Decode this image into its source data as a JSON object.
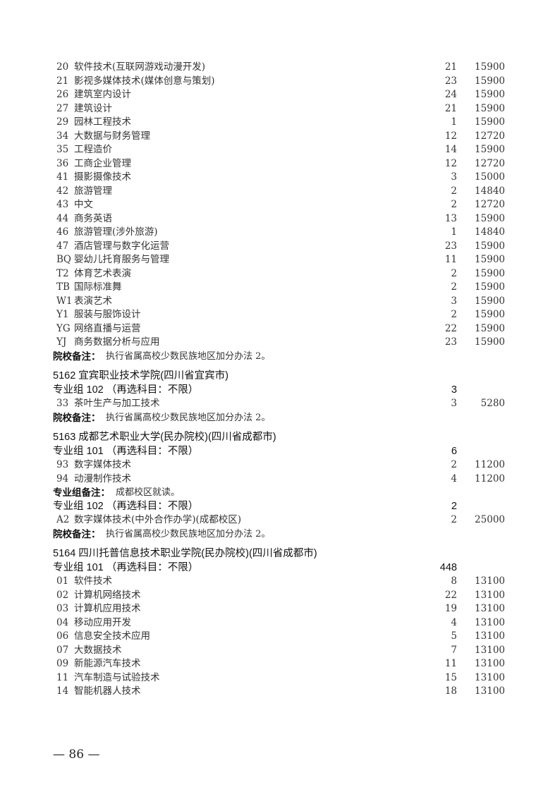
{
  "lines": [
    {
      "type": "item",
      "code": "20",
      "name": "软件技术(互联网游戏动漫开发)",
      "count": "21",
      "fee": "15900"
    },
    {
      "type": "item",
      "code": "21",
      "name": "影视多媒体技术(媒体创意与策划)",
      "count": "23",
      "fee": "15900"
    },
    {
      "type": "item",
      "code": "26",
      "name": "建筑室内设计",
      "count": "24",
      "fee": "15900"
    },
    {
      "type": "item",
      "code": "27",
      "name": "建筑设计",
      "count": "21",
      "fee": "15900"
    },
    {
      "type": "item",
      "code": "29",
      "name": "园林工程技术",
      "count": "1",
      "fee": "15900"
    },
    {
      "type": "item",
      "code": "34",
      "name": "大数据与财务管理",
      "count": "12",
      "fee": "12720"
    },
    {
      "type": "item",
      "code": "35",
      "name": "工程造价",
      "count": "14",
      "fee": "15900"
    },
    {
      "type": "item",
      "code": "36",
      "name": "工商企业管理",
      "count": "12",
      "fee": "12720"
    },
    {
      "type": "item",
      "code": "41",
      "name": "摄影摄像技术",
      "count": "3",
      "fee": "15000"
    },
    {
      "type": "item",
      "code": "42",
      "name": "旅游管理",
      "count": "2",
      "fee": "14840"
    },
    {
      "type": "item",
      "code": "43",
      "name": "中文",
      "count": "2",
      "fee": "12720"
    },
    {
      "type": "item",
      "code": "44",
      "name": "商务英语",
      "count": "13",
      "fee": "15900"
    },
    {
      "type": "item",
      "code": "46",
      "name": "旅游管理(涉外旅游)",
      "count": "1",
      "fee": "14840"
    },
    {
      "type": "item",
      "code": "47",
      "name": "酒店管理与数字化运营",
      "count": "23",
      "fee": "15900"
    },
    {
      "type": "item",
      "code": "BQ",
      "name": "婴幼儿托育服务与管理",
      "count": "11",
      "fee": "15900"
    },
    {
      "type": "item",
      "code": "T2",
      "name": "体育艺术表演",
      "count": "2",
      "fee": "15900"
    },
    {
      "type": "item",
      "code": "TB",
      "name": "国际标准舞",
      "count": "2",
      "fee": "15900"
    },
    {
      "type": "item",
      "code": "W1",
      "name": "表演艺术",
      "count": "3",
      "fee": "15900"
    },
    {
      "type": "item",
      "code": "Y1",
      "name": "服装与服饰设计",
      "count": "2",
      "fee": "15900"
    },
    {
      "type": "item",
      "code": "YG",
      "name": "网络直播与运营",
      "count": "22",
      "fee": "15900"
    },
    {
      "type": "item",
      "code": "YJ",
      "name": "商务数据分析与应用",
      "count": "23",
      "fee": "15900"
    },
    {
      "type": "note",
      "label": "院校备注：",
      "text": "执行省属高校少数民族地区加分办法 2。"
    },
    {
      "type": "school",
      "text": "5162  宜宾职业技术学院(四川省宜宾市)"
    },
    {
      "type": "group",
      "text": "专业组 102 （再选科目：不限）",
      "count": "3"
    },
    {
      "type": "item",
      "code": "33",
      "name": "茶叶生产与加工技术",
      "count": "3",
      "fee": "5280"
    },
    {
      "type": "note",
      "label": "院校备注：",
      "text": "执行省属高校少数民族地区加分办法 2。"
    },
    {
      "type": "school",
      "text": "5163  成都艺术职业大学(民办院校)(四川省成都市)"
    },
    {
      "type": "group",
      "text": "专业组 101 （再选科目：不限）",
      "count": "6"
    },
    {
      "type": "item",
      "code": "93",
      "name": "数字媒体技术",
      "count": "2",
      "fee": "11200"
    },
    {
      "type": "item",
      "code": "94",
      "name": "动漫制作技术",
      "count": "4",
      "fee": "11200"
    },
    {
      "type": "groupnote",
      "label": "专业组备注：",
      "text": "成都校区就读。"
    },
    {
      "type": "group",
      "text": "专业组 102 （再选科目：不限）",
      "count": "2"
    },
    {
      "type": "item",
      "code": "A2",
      "name": "数字媒体技术(中外合作办学)(成都校区)",
      "count": "2",
      "fee": "25000"
    },
    {
      "type": "note",
      "label": "院校备注：",
      "text": "执行省属高校少数民族地区加分办法 2。"
    },
    {
      "type": "school",
      "text": "5164  四川托普信息技术职业学院(民办院校)(四川省成都市)"
    },
    {
      "type": "group",
      "text": "专业组 101 （再选科目：不限）",
      "count": "448"
    },
    {
      "type": "item",
      "code": "01",
      "name": "软件技术",
      "count": "8",
      "fee": "13100"
    },
    {
      "type": "item",
      "code": "02",
      "name": "计算机网络技术",
      "count": "22",
      "fee": "13100"
    },
    {
      "type": "item",
      "code": "03",
      "name": "计算机应用技术",
      "count": "19",
      "fee": "13100"
    },
    {
      "type": "item",
      "code": "04",
      "name": "移动应用开发",
      "count": "4",
      "fee": "13100"
    },
    {
      "type": "item",
      "code": "06",
      "name": "信息安全技术应用",
      "count": "5",
      "fee": "13100"
    },
    {
      "type": "item",
      "code": "07",
      "name": "大数据技术",
      "count": "7",
      "fee": "13100"
    },
    {
      "type": "item",
      "code": "09",
      "name": "新能源汽车技术",
      "count": "11",
      "fee": "13100"
    },
    {
      "type": "item",
      "code": "11",
      "name": "汽车制造与试验技术",
      "count": "15",
      "fee": "13100"
    },
    {
      "type": "item",
      "code": "14",
      "name": "智能机器人技术",
      "count": "18",
      "fee": "13100"
    }
  ],
  "page_number": "— 86 —"
}
